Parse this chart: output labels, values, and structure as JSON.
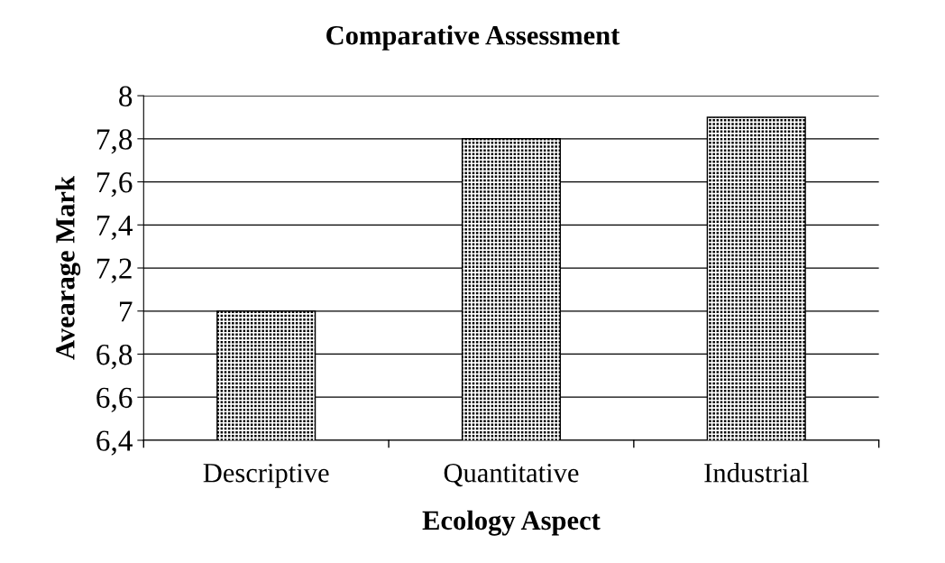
{
  "chart_data": {
    "type": "bar",
    "title": "Comparative Assessment",
    "xlabel": "Ecology Aspect",
    "ylabel": "Avearage Mark",
    "categories": [
      "Descriptive",
      "Quantitative",
      "Industrial"
    ],
    "values": [
      7,
      7.8,
      7.9
    ],
    "color": "#000000",
    "ylim": [
      6.4,
      8
    ],
    "yticks": [
      {
        "value": 6.4,
        "label": "6,4"
      },
      {
        "value": 6.6,
        "label": "6,6"
      },
      {
        "value": 6.8,
        "label": "6,8"
      },
      7,
      {
        "value": 7.2,
        "label": "7,2"
      },
      {
        "value": 7.4,
        "label": "7,4"
      },
      {
        "value": 7.6,
        "label": "7,6"
      },
      {
        "value": 7.8,
        "label": "7,8"
      },
      8
    ],
    "grid": "y",
    "legend": false
  }
}
